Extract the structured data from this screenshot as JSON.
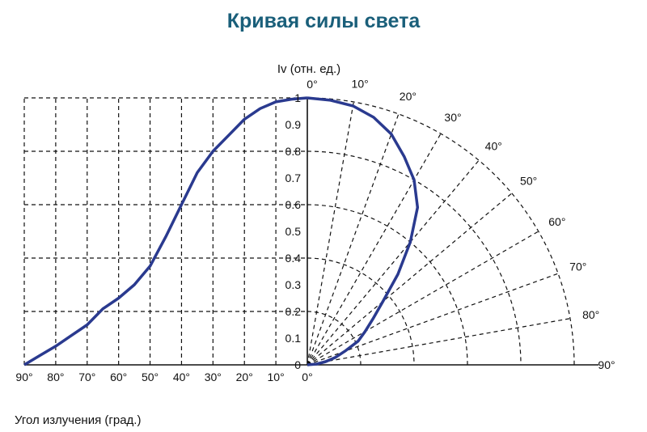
{
  "chart_data": {
    "type": "line",
    "subtype": "polar-and-cartesian",
    "title": "Кривая силы света",
    "ylabel": "Iv (отн. ед.)",
    "xlabel": "Угол излучения (град.)",
    "ylim": [
      0,
      1
    ],
    "xlim": [
      90,
      0
    ],
    "grid": true,
    "y_ticks": [
      "0",
      "0.1",
      "0.2",
      "0.3",
      "0.4",
      "0.5",
      "0.6",
      "0.7",
      "0.8",
      "0.9",
      "1"
    ],
    "x_ticks": [
      "90°",
      "80°",
      "70°",
      "60°",
      "50°",
      "40°",
      "30°",
      "20°",
      "10°",
      "0°"
    ],
    "polar_angle_labels": [
      "0°",
      "10°",
      "20°",
      "30°",
      "40°",
      "50°",
      "60°",
      "70°",
      "80°",
      "90°"
    ],
    "polar_right_bottom_labels": [
      "0°",
      "90°"
    ],
    "series": [
      {
        "angle_deg": [
          0,
          5,
          10,
          15,
          20,
          25,
          30,
          35,
          40,
          45,
          50,
          55,
          60,
          65,
          70,
          75,
          80,
          85,
          90
        ],
        "values": [
          1.0,
          0.995,
          0.985,
          0.96,
          0.92,
          0.86,
          0.8,
          0.72,
          0.6,
          0.48,
          0.37,
          0.3,
          0.25,
          0.21,
          0.15,
          0.11,
          0.07,
          0.035,
          0.0
        ],
        "color": "#2a3a8f"
      }
    ]
  },
  "colors": {
    "title": "#1a5f7a",
    "curve": "#2a3a8f",
    "grid": "#111111"
  }
}
